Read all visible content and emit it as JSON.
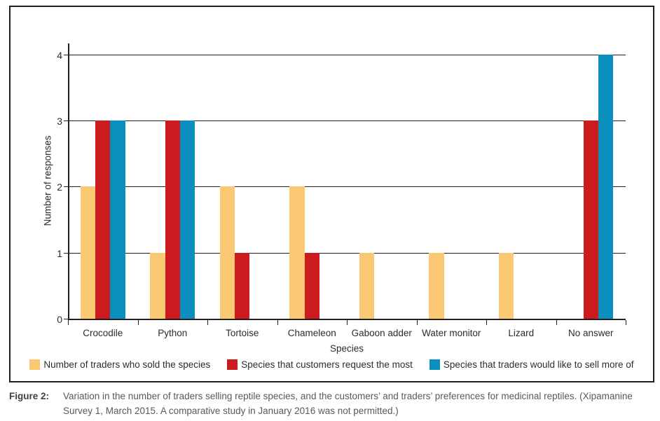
{
  "chart_data": {
    "type": "bar",
    "title": "",
    "xlabel": "Species",
    "ylabel": "Number of responses",
    "ylim": [
      0,
      4
    ],
    "yticks": [
      0,
      1,
      2,
      3,
      4
    ],
    "grid": "horizontal gridlines at integer values",
    "legend_position": "bottom",
    "categories": [
      "Crocodile",
      "Python",
      "Tortoise",
      "Chameleon",
      "Gaboon adder",
      "Water monitor",
      "Lizard",
      "No answer"
    ],
    "series": [
      {
        "name": "Number of traders who sold the species",
        "color": "#FBC973",
        "values": [
          2,
          1,
          2,
          2,
          1,
          1,
          1,
          0
        ]
      },
      {
        "name": "Species that customers request the most",
        "color": "#CC1B1E",
        "values": [
          3,
          3,
          1,
          1,
          0,
          0,
          0,
          3
        ]
      },
      {
        "name": "Species that traders would like to sell more of",
        "color": "#0A8FBF",
        "values": [
          3,
          3,
          0,
          0,
          0,
          0,
          0,
          4
        ]
      }
    ]
  },
  "colors": {
    "axis": "#231F20",
    "tick_text": "#2c2c2e",
    "caption_label": "#414042",
    "caption_text": "#58595B"
  },
  "caption": {
    "label": "Figure 2:",
    "text": "Variation in the number of traders selling reptile species, and the customers’ and traders’ preferences for medicinal reptiles. (Xipamanine Survey 1, March 2015. A comparative study in January 2016 was not permitted.)"
  }
}
